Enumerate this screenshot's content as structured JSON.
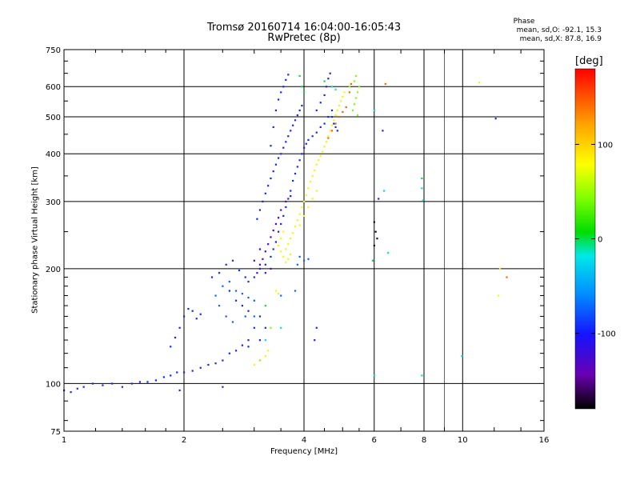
{
  "chart_data": {
    "type": "scatter",
    "title": "Tromsø 20160714 16:04:00-16:05:43",
    "subtitle": "RwPretec (8p)",
    "xlabel": "Frequency [MHz]",
    "ylabel": "Stationary phase Virtual Height [km]",
    "xscale": "log",
    "yscale": "log",
    "xlim": [
      1,
      16
    ],
    "ylim": [
      75,
      750
    ],
    "xticks": [
      1,
      2,
      4,
      6,
      8,
      10,
      16
    ],
    "xtick_labels": [
      "1",
      "2",
      "4",
      "6",
      "8",
      "10",
      "16"
    ],
    "yticks": [
      75,
      100,
      200,
      300,
      400,
      500,
      600,
      750
    ],
    "ytick_labels": [
      "75",
      "100",
      "200",
      "300",
      "400",
      "500",
      "600",
      "750"
    ],
    "grid": true,
    "phase_legend": {
      "title": "Phase",
      "o_line": "mean, sd,O: -92.1, 15.3",
      "x_line": "mean, sd,X: 87.8, 16.9"
    },
    "colorbar": {
      "unit": "[deg]",
      "range": [
        -180,
        180
      ],
      "ticks": [
        -100,
        0,
        100
      ],
      "tick_labels": [
        "-100",
        "0",
        "100"
      ]
    },
    "series": [
      {
        "color_phase": -95,
        "points": [
          [
            1.0,
            96
          ],
          [
            1.04,
            95
          ],
          [
            1.08,
            97
          ],
          [
            1.12,
            98
          ],
          [
            1.18,
            100
          ],
          [
            1.25,
            99
          ],
          [
            1.32,
            100
          ],
          [
            1.4,
            98
          ],
          [
            1.48,
            100
          ],
          [
            1.55,
            101
          ],
          [
            1.62,
            101
          ],
          [
            1.7,
            102
          ],
          [
            1.78,
            104
          ],
          [
            1.85,
            105
          ],
          [
            1.92,
            107
          ],
          [
            2.0,
            107
          ],
          [
            2.1,
            108
          ],
          [
            2.2,
            110
          ],
          [
            2.3,
            112
          ],
          [
            2.4,
            113
          ],
          [
            2.5,
            115
          ],
          [
            2.6,
            120
          ],
          [
            2.7,
            122
          ],
          [
            2.8,
            126
          ],
          [
            2.9,
            130
          ],
          [
            3.0,
            140
          ],
          [
            3.1,
            150
          ],
          [
            1.85,
            125
          ],
          [
            1.9,
            132
          ],
          [
            1.95,
            140
          ],
          [
            2.0,
            150
          ],
          [
            2.05,
            157
          ],
          [
            2.1,
            155
          ],
          [
            2.15,
            148
          ],
          [
            2.2,
            152
          ],
          [
            2.35,
            190
          ],
          [
            2.45,
            195
          ],
          [
            2.55,
            205
          ],
          [
            2.65,
            210
          ],
          [
            2.75,
            198
          ],
          [
            2.85,
            190
          ],
          [
            2.9,
            185
          ],
          [
            2.6,
            175
          ],
          [
            2.7,
            165
          ],
          [
            2.8,
            160
          ],
          [
            2.9,
            155
          ],
          [
            3.0,
            190
          ],
          [
            3.1,
            200
          ],
          [
            3.2,
            205
          ],
          [
            3.3,
            215
          ],
          [
            3.35,
            225
          ],
          [
            3.4,
            235
          ],
          [
            3.45,
            250
          ],
          [
            3.5,
            262
          ],
          [
            3.55,
            275
          ],
          [
            3.6,
            290
          ],
          [
            3.65,
            305
          ],
          [
            3.7,
            320
          ],
          [
            3.75,
            340
          ],
          [
            3.8,
            355
          ],
          [
            3.85,
            370
          ],
          [
            3.9,
            385
          ],
          [
            3.95,
            400
          ],
          [
            4.0,
            415
          ],
          [
            4.05,
            425
          ],
          [
            4.1,
            435
          ],
          [
            4.2,
            445
          ],
          [
            4.3,
            455
          ],
          [
            4.4,
            470
          ],
          [
            4.5,
            480
          ],
          [
            4.6,
            500
          ],
          [
            4.7,
            520
          ],
          [
            3.05,
            270
          ],
          [
            3.1,
            285
          ],
          [
            3.15,
            300
          ],
          [
            3.2,
            315
          ],
          [
            3.25,
            330
          ],
          [
            3.3,
            345
          ],
          [
            3.35,
            360
          ],
          [
            3.4,
            375
          ],
          [
            3.45,
            390
          ],
          [
            3.5,
            400
          ],
          [
            3.55,
            415
          ],
          [
            3.6,
            430
          ],
          [
            3.65,
            445
          ],
          [
            3.7,
            460
          ],
          [
            3.75,
            475
          ],
          [
            3.8,
            490
          ],
          [
            3.85,
            505
          ],
          [
            3.9,
            520
          ],
          [
            3.95,
            535
          ],
          [
            3.3,
            420
          ],
          [
            3.35,
            470
          ],
          [
            3.4,
            520
          ],
          [
            3.45,
            555
          ],
          [
            3.5,
            580
          ],
          [
            3.55,
            600
          ],
          [
            3.6,
            625
          ],
          [
            3.65,
            645
          ],
          [
            4.3,
            520
          ],
          [
            4.4,
            545
          ],
          [
            4.5,
            570
          ],
          [
            4.55,
            600
          ],
          [
            4.6,
            630
          ],
          [
            4.65,
            650
          ],
          [
            4.7,
            500
          ],
          [
            4.75,
            480
          ],
          [
            4.8,
            470
          ],
          [
            4.85,
            460
          ],
          [
            12.1,
            495
          ],
          [
            6.3,
            460
          ],
          [
            4.3,
            140
          ],
          [
            4.25,
            130
          ],
          [
            2.5,
            98
          ],
          [
            1.95,
            96
          ],
          [
            2.9,
            125
          ],
          [
            3.1,
            130
          ],
          [
            3.2,
            140
          ]
        ]
      },
      {
        "color_phase": -130,
        "points": [
          [
            3.05,
            195
          ],
          [
            3.1,
            205
          ],
          [
            3.15,
            212
          ],
          [
            3.2,
            222
          ],
          [
            3.25,
            232
          ],
          [
            3.3,
            242
          ],
          [
            3.35,
            252
          ],
          [
            3.4,
            262
          ],
          [
            3.45,
            272
          ],
          [
            3.5,
            285
          ],
          [
            3.2,
            195
          ],
          [
            3.3,
            200
          ],
          [
            3.0,
            210
          ],
          [
            3.1,
            225
          ],
          [
            6.15,
            305
          ],
          [
            3.6,
            300
          ],
          [
            3.7,
            310
          ]
        ]
      },
      {
        "color_phase": -75,
        "points": [
          [
            2.5,
            180
          ],
          [
            2.6,
            185
          ],
          [
            2.7,
            175
          ],
          [
            2.8,
            172
          ],
          [
            2.9,
            168
          ],
          [
            3.0,
            165
          ],
          [
            2.4,
            170
          ],
          [
            2.45,
            160
          ],
          [
            2.55,
            150
          ],
          [
            2.65,
            145
          ],
          [
            2.85,
            150
          ],
          [
            3.0,
            150
          ],
          [
            3.5,
            170
          ],
          [
            3.8,
            175
          ],
          [
            4.0,
            210
          ],
          [
            4.1,
            212
          ],
          [
            3.9,
            215
          ],
          [
            3.85,
            205
          ]
        ]
      },
      {
        "color_phase": -25,
        "points": [
          [
            6.0,
            520
          ],
          [
            6.0,
            105
          ],
          [
            7.9,
            325
          ],
          [
            7.95,
            302
          ],
          [
            7.9,
            105
          ],
          [
            6.5,
            220
          ],
          [
            9.95,
            118
          ],
          [
            3.2,
            130
          ],
          [
            3.5,
            140
          ],
          [
            6.35,
            320
          ],
          [
            4.7,
            600
          ],
          [
            4.8,
            590
          ]
        ]
      },
      {
        "color_phase": 85,
        "points": [
          [
            3.6,
            225
          ],
          [
            3.65,
            232
          ],
          [
            3.7,
            240
          ],
          [
            3.75,
            248
          ],
          [
            3.8,
            258
          ],
          [
            3.85,
            268
          ],
          [
            3.9,
            278
          ],
          [
            3.95,
            290
          ],
          [
            4.0,
            300
          ],
          [
            4.05,
            312
          ],
          [
            4.1,
            325
          ],
          [
            4.15,
            338
          ],
          [
            4.2,
            350
          ],
          [
            4.25,
            362
          ],
          [
            4.3,
            375
          ],
          [
            4.35,
            385
          ],
          [
            4.4,
            395
          ],
          [
            4.45,
            405
          ],
          [
            4.5,
            418
          ],
          [
            4.55,
            430
          ],
          [
            4.6,
            445
          ],
          [
            4.65,
            460
          ],
          [
            4.7,
            475
          ],
          [
            4.75,
            490
          ],
          [
            4.8,
            505
          ],
          [
            4.85,
            520
          ],
          [
            4.9,
            535
          ],
          [
            4.95,
            550
          ],
          [
            5.0,
            565
          ],
          [
            5.05,
            580
          ],
          [
            3.55,
            215
          ],
          [
            3.6,
            208
          ],
          [
            3.65,
            212
          ],
          [
            3.7,
            218
          ],
          [
            3.5,
            222
          ],
          [
            3.45,
            230
          ],
          [
            3.5,
            240
          ],
          [
            3.55,
            250
          ],
          [
            3.9,
            260
          ],
          [
            4.0,
            275
          ],
          [
            4.1,
            290
          ],
          [
            4.2,
            305
          ],
          [
            4.3,
            320
          ],
          [
            3.4,
            175
          ],
          [
            3.45,
            172
          ],
          [
            3.2,
            118
          ],
          [
            3.25,
            122
          ],
          [
            3.0,
            112
          ],
          [
            12.4,
            200
          ],
          [
            12.3,
            170
          ],
          [
            11.0,
            615
          ]
        ]
      },
      {
        "color_phase": 45,
        "points": [
          [
            5.3,
            520
          ],
          [
            5.35,
            540
          ],
          [
            5.4,
            560
          ],
          [
            5.45,
            580
          ],
          [
            5.5,
            600
          ],
          [
            5.35,
            620
          ],
          [
            5.4,
            640
          ],
          [
            5.45,
            505
          ],
          [
            3.1,
            115
          ],
          [
            3.3,
            140
          ],
          [
            5.2,
            600
          ]
        ]
      },
      {
        "color_phase": 145,
        "points": [
          [
            4.6,
            440
          ],
          [
            4.7,
            460
          ],
          [
            4.8,
            480
          ],
          [
            4.9,
            500
          ],
          [
            5.0,
            515
          ],
          [
            5.1,
            530
          ],
          [
            5.2,
            580
          ],
          [
            5.25,
            610
          ],
          [
            6.4,
            610
          ],
          [
            12.9,
            190
          ]
        ]
      },
      {
        "color_phase": 0,
        "points": [
          [
            7.9,
            345
          ],
          [
            3.2,
            160
          ],
          [
            5.95,
            210
          ],
          [
            4.5,
            620
          ],
          [
            3.9,
            640
          ],
          [
            3.95,
            600
          ],
          [
            4.0,
            580
          ]
        ]
      },
      {
        "color_phase": -170,
        "points": [
          [
            6.0,
            265
          ],
          [
            6.05,
            250
          ],
          [
            6.1,
            240
          ],
          [
            6.0,
            230
          ]
        ]
      }
    ]
  }
}
